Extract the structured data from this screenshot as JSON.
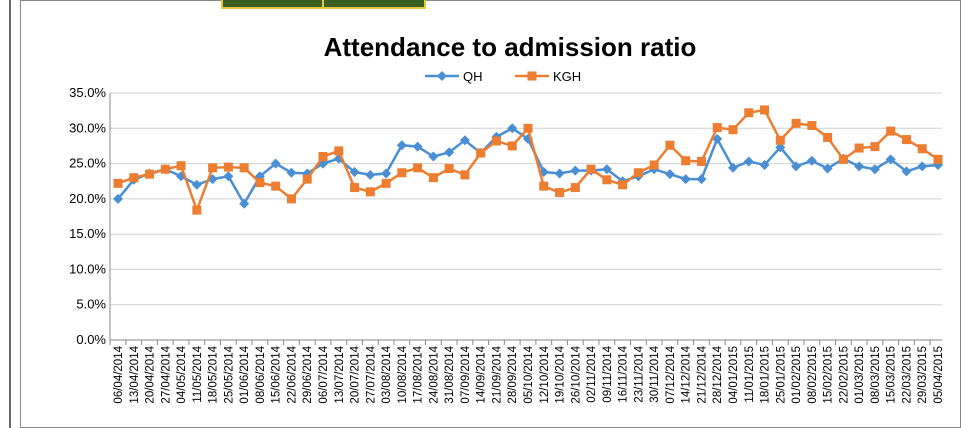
{
  "chart_data": {
    "type": "line",
    "title": "Attendance to admission ratio",
    "x": [
      "06/04/2014",
      "13/04/2014",
      "20/04/2014",
      "27/04/2014",
      "04/05/2014",
      "11/05/2014",
      "18/05/2014",
      "25/05/2014",
      "01/06/2014",
      "08/06/2014",
      "15/06/2014",
      "22/06/2014",
      "29/06/2014",
      "06/07/2014",
      "13/07/2014",
      "20/07/2014",
      "27/07/2014",
      "03/08/2014",
      "10/08/2014",
      "17/08/2014",
      "24/08/2014",
      "31/08/2014",
      "07/09/2014",
      "14/09/2014",
      "21/09/2014",
      "28/09/2014",
      "05/10/2014",
      "12/10/2014",
      "19/10/2014",
      "26/10/2014",
      "02/11/2014",
      "09/11/2014",
      "16/11/2014",
      "23/11/2014",
      "30/11/2014",
      "07/12/2014",
      "14/12/2014",
      "21/12/2014",
      "28/12/2014",
      "04/01/2015",
      "11/01/2015",
      "18/01/2015",
      "25/01/2015",
      "01/02/2015",
      "08/02/2015",
      "15/02/2015",
      "22/02/2015",
      "01/03/2015",
      "08/03/2015",
      "15/03/2015",
      "22/03/2015",
      "29/03/2015",
      "05/04/2015"
    ],
    "series": [
      {
        "name": "QH",
        "color": "#4a8fd4",
        "marker": "diamond",
        "values": [
          20.0,
          22.7,
          23.6,
          24.2,
          23.2,
          22.0,
          22.8,
          23.2,
          19.3,
          23.2,
          25.0,
          23.7,
          23.6,
          25.0,
          25.7,
          23.8,
          23.4,
          23.6,
          27.6,
          27.4,
          26.0,
          26.6,
          28.3,
          26.5,
          28.8,
          30.0,
          28.5,
          23.8,
          23.6,
          24.0,
          24.0,
          24.2,
          22.5,
          23.2,
          24.2,
          23.5,
          22.8,
          22.8,
          28.5,
          24.4,
          25.3,
          24.8,
          27.3,
          24.6,
          25.4,
          24.3,
          25.7,
          24.6,
          24.2,
          25.6,
          23.9,
          24.6,
          24.8
        ]
      },
      {
        "name": "KGH",
        "color": "#ed7d31",
        "marker": "square",
        "values": [
          22.2,
          23.0,
          23.5,
          24.2,
          24.7,
          18.4,
          24.4,
          24.5,
          24.4,
          22.3,
          21.8,
          20.0,
          22.8,
          26.0,
          26.8,
          21.6,
          21.0,
          22.2,
          23.7,
          24.4,
          23.0,
          24.3,
          23.4,
          26.5,
          28.2,
          27.5,
          30.0,
          21.8,
          20.9,
          21.6,
          24.2,
          22.7,
          22.0,
          23.7,
          24.8,
          27.6,
          25.4,
          25.3,
          30.1,
          29.8,
          32.2,
          32.6,
          28.3,
          30.7,
          30.4,
          28.7,
          25.6,
          27.2,
          27.4,
          29.6,
          28.4,
          27.1,
          25.6
        ]
      }
    ],
    "ylim": [
      0,
      35
    ],
    "yticks": [
      {
        "value": 0,
        "label": "0.0%"
      },
      {
        "value": 5,
        "label": "5.0%"
      },
      {
        "value": 10,
        "label": "10.0%"
      },
      {
        "value": 15,
        "label": "15.0%"
      },
      {
        "value": 20,
        "label": "20.0%"
      },
      {
        "value": 25,
        "label": "25.0%"
      },
      {
        "value": 30,
        "label": "30.0%"
      },
      {
        "value": 35,
        "label": "35.0%"
      }
    ],
    "grid": true,
    "legend": "top"
  }
}
